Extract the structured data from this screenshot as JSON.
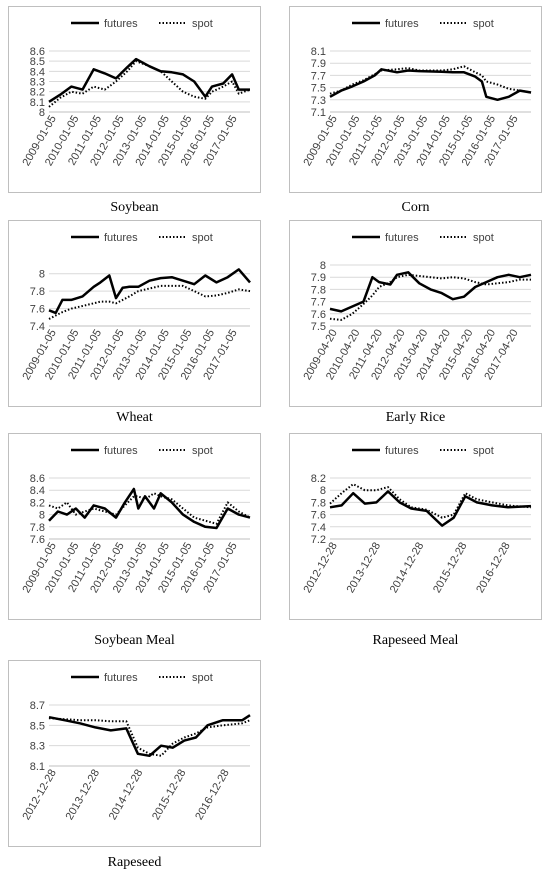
{
  "colors": {
    "futures": "#000000",
    "spot": "#000000",
    "grid": "#d9d9d9",
    "axis_text": "#404040"
  },
  "chart_data": [
    {
      "type": "line",
      "title": "Soybean",
      "legend": [
        "futures",
        "spot"
      ],
      "legend_position": "top",
      "x_tick_labels": [
        "2009-01-05",
        "2010-01-05",
        "2011-01-05",
        "2012-01-05",
        "2013-01-05",
        "2014-01-05",
        "2015-01-05",
        "2016-01-05",
        "2017-01-05"
      ],
      "y_tick_labels": [
        "8",
        "8.1",
        "8.2",
        "8.3",
        "8.4",
        "8.5",
        "8.6"
      ],
      "ylim": [
        8,
        8.6
      ],
      "xlim": [
        2009.0,
        2018.0
      ],
      "grid": "horizontal",
      "x": [
        2009.0,
        2009.5,
        2010.0,
        2010.5,
        2011.0,
        2011.5,
        2012.0,
        2012.5,
        2012.9,
        2013.5,
        2014.0,
        2014.5,
        2015.0,
        2015.5,
        2016.0,
        2016.3,
        2016.8,
        2017.2,
        2017.5,
        2018.0
      ],
      "series": [
        {
          "name": "futures",
          "style": "solid",
          "values": [
            8.1,
            8.17,
            8.25,
            8.22,
            8.42,
            8.38,
            8.33,
            8.44,
            8.52,
            8.45,
            8.4,
            8.39,
            8.37,
            8.3,
            8.15,
            8.25,
            8.28,
            8.37,
            8.22,
            8.22
          ]
        },
        {
          "name": "spot",
          "style": "dotted",
          "values": [
            8.05,
            8.14,
            8.2,
            8.18,
            8.25,
            8.22,
            8.3,
            8.4,
            8.5,
            8.45,
            8.4,
            8.3,
            8.2,
            8.15,
            8.13,
            8.2,
            8.25,
            8.3,
            8.18,
            8.22
          ]
        }
      ]
    },
    {
      "type": "line",
      "title": "Corn",
      "legend": [
        "futures",
        "spot"
      ],
      "legend_position": "top",
      "x_tick_labels": [
        "2009-01-05",
        "2010-01-05",
        "2011-01-05",
        "2012-01-05",
        "2013-01-05",
        "2014-01-05",
        "2015-01-05",
        "2016-01-05",
        "2017-01-05"
      ],
      "y_tick_labels": [
        "7.1",
        "7.3",
        "7.5",
        "7.7",
        "7.9",
        "8.1"
      ],
      "ylim": [
        7.1,
        8.1
      ],
      "xlim": [
        2009.0,
        2018.0
      ],
      "grid": "horizontal",
      "x": [
        2009.0,
        2009.5,
        2010.0,
        2010.5,
        2011.0,
        2011.3,
        2012.0,
        2012.5,
        2013.0,
        2014.0,
        2014.5,
        2015.0,
        2015.5,
        2015.8,
        2016.0,
        2016.5,
        2017.0,
        2017.5,
        2018.0
      ],
      "series": [
        {
          "name": "futures",
          "style": "solid",
          "values": [
            7.35,
            7.45,
            7.52,
            7.6,
            7.7,
            7.8,
            7.75,
            7.78,
            7.77,
            7.76,
            7.75,
            7.75,
            7.68,
            7.6,
            7.35,
            7.3,
            7.35,
            7.45,
            7.42
          ]
        },
        {
          "name": "spot",
          "style": "dotted",
          "values": [
            7.4,
            7.45,
            7.55,
            7.62,
            7.72,
            7.78,
            7.8,
            7.82,
            7.78,
            7.78,
            7.8,
            7.85,
            7.75,
            7.7,
            7.6,
            7.55,
            7.48,
            7.45,
            7.42
          ]
        }
      ]
    },
    {
      "type": "line",
      "title": "Wheat",
      "legend": [
        "futures",
        "spot"
      ],
      "legend_position": "top",
      "x_tick_labels": [
        "2009-01-05",
        "2010-01-05",
        "2011-01-05",
        "2012-01-05",
        "2013-01-05",
        "2014-01-05",
        "2015-01-05",
        "2016-01-05",
        "2017-01-05"
      ],
      "y_tick_labels": [
        "7.4",
        "7.6",
        "7.8",
        "8"
      ],
      "ylim": [
        7.4,
        8.1
      ],
      "xlim": [
        2009.0,
        2018.0
      ],
      "grid": "horizontal",
      "x": [
        2009.0,
        2009.3,
        2009.6,
        2010.0,
        2010.5,
        2011.0,
        2011.3,
        2011.7,
        2012.0,
        2012.3,
        2012.6,
        2013.0,
        2013.5,
        2014.0,
        2014.5,
        2015.0,
        2015.5,
        2016.0,
        2016.5,
        2017.0,
        2017.5,
        2018.0
      ],
      "series": [
        {
          "name": "futures",
          "style": "solid",
          "values": [
            7.58,
            7.55,
            7.7,
            7.7,
            7.74,
            7.85,
            7.9,
            7.98,
            7.72,
            7.84,
            7.85,
            7.85,
            7.92,
            7.95,
            7.96,
            7.92,
            7.88,
            7.98,
            7.9,
            7.96,
            8.05,
            7.9
          ]
        },
        {
          "name": "spot",
          "style": "dotted",
          "values": [
            7.48,
            7.52,
            7.56,
            7.6,
            7.63,
            7.66,
            7.68,
            7.68,
            7.66,
            7.7,
            7.74,
            7.8,
            7.83,
            7.86,
            7.86,
            7.86,
            7.8,
            7.74,
            7.75,
            7.78,
            7.82,
            7.8
          ]
        }
      ]
    },
    {
      "type": "line",
      "title": "Early Rice",
      "legend": [
        "futures",
        "spot"
      ],
      "legend_position": "top",
      "x_tick_labels": [
        "2009-04-20",
        "2010-04-20",
        "2011-04-20",
        "2012-04-20",
        "2013-04-20",
        "2014-04-20",
        "2015-04-20",
        "2016-04-20",
        "2017-04-20"
      ],
      "y_tick_labels": [
        "7.5",
        "7.6",
        "7.7",
        "7.8",
        "7.9",
        "8"
      ],
      "ylim": [
        7.5,
        8.0
      ],
      "xlim": [
        2009.3,
        2018.3
      ],
      "grid": "horizontal",
      "x": [
        2009.3,
        2009.8,
        2010.3,
        2010.8,
        2011.2,
        2011.5,
        2012.0,
        2012.3,
        2012.8,
        2013.3,
        2013.8,
        2014.3,
        2014.8,
        2015.3,
        2015.8,
        2016.3,
        2016.8,
        2017.3,
        2017.8,
        2018.3
      ],
      "series": [
        {
          "name": "futures",
          "style": "solid",
          "values": [
            7.64,
            7.62,
            7.66,
            7.7,
            7.9,
            7.86,
            7.84,
            7.92,
            7.94,
            7.85,
            7.8,
            7.77,
            7.72,
            7.74,
            7.82,
            7.86,
            7.9,
            7.92,
            7.9,
            7.92
          ]
        },
        {
          "name": "spot",
          "style": "dotted",
          "values": [
            7.56,
            7.55,
            7.6,
            7.68,
            7.75,
            7.82,
            7.86,
            7.9,
            7.92,
            7.91,
            7.9,
            7.89,
            7.9,
            7.89,
            7.86,
            7.84,
            7.85,
            7.86,
            7.88,
            7.88
          ]
        }
      ]
    },
    {
      "type": "line",
      "title": "Soybean Meal",
      "legend": [
        "futures",
        "spot"
      ],
      "legend_position": "top",
      "x_tick_labels": [
        "2009-01-05",
        "2010-01-05",
        "2011-01-05",
        "2012-01-05",
        "2013-01-05",
        "2014-01-05",
        "2015-01-05",
        "2016-01-05",
        "2017-01-05"
      ],
      "y_tick_labels": [
        "7.6",
        "7.8",
        "8",
        "8.2",
        "8.4",
        "8.6"
      ],
      "ylim": [
        7.6,
        8.6
      ],
      "xlim": [
        2009.0,
        2018.0
      ],
      "grid": "horizontal",
      "x": [
        2009.0,
        2009.4,
        2009.8,
        2010.2,
        2010.6,
        2011.0,
        2011.5,
        2012.0,
        2012.4,
        2012.8,
        2013.0,
        2013.3,
        2013.7,
        2014.0,
        2014.5,
        2015.0,
        2015.5,
        2016.0,
        2016.5,
        2017.0,
        2017.5,
        2018.0
      ],
      "series": [
        {
          "name": "futures",
          "style": "solid",
          "values": [
            7.9,
            8.05,
            8.0,
            8.1,
            7.95,
            8.15,
            8.1,
            7.95,
            8.2,
            8.42,
            8.1,
            8.3,
            8.1,
            8.35,
            8.2,
            8.0,
            7.88,
            7.8,
            7.78,
            8.1,
            8.0,
            7.95
          ]
        },
        {
          "name": "spot",
          "style": "dotted",
          "values": [
            8.15,
            8.1,
            8.2,
            8.0,
            8.05,
            8.1,
            8.05,
            8.0,
            8.15,
            8.3,
            8.3,
            8.25,
            8.35,
            8.3,
            8.25,
            8.1,
            7.95,
            7.9,
            7.85,
            8.2,
            8.05,
            7.95
          ]
        }
      ]
    },
    {
      "type": "line",
      "title": "Rapeseed Meal",
      "legend": [
        "futures",
        "spot"
      ],
      "legend_position": "top",
      "x_tick_labels": [
        "2012-12-28",
        "2013-12-28",
        "2014-12-28",
        "2015-12-28",
        "2016-12-28"
      ],
      "y_tick_labels": [
        "7.2",
        "7.4",
        "7.6",
        "7.8",
        "8",
        "8.2"
      ],
      "ylim": [
        7.2,
        8.2
      ],
      "xlim": [
        2013.0,
        2018.2
      ],
      "grid": "horizontal",
      "x": [
        2013.0,
        2013.3,
        2013.6,
        2013.9,
        2014.2,
        2014.5,
        2014.8,
        2015.1,
        2015.5,
        2015.9,
        2016.2,
        2016.5,
        2016.8,
        2017.2,
        2017.6,
        2018.2
      ],
      "series": [
        {
          "name": "futures",
          "style": "solid",
          "values": [
            7.72,
            7.75,
            7.95,
            7.78,
            7.8,
            7.98,
            7.8,
            7.7,
            7.66,
            7.42,
            7.55,
            7.9,
            7.8,
            7.75,
            7.72,
            7.74
          ]
        },
        {
          "name": "spot",
          "style": "dotted",
          "values": [
            7.78,
            7.95,
            8.1,
            8.0,
            8.0,
            8.05,
            7.85,
            7.72,
            7.68,
            7.55,
            7.6,
            7.95,
            7.85,
            7.8,
            7.75,
            7.72
          ]
        }
      ]
    },
    {
      "type": "line",
      "title": "Rapeseed",
      "legend": [
        "futures",
        "spot"
      ],
      "legend_position": "top",
      "x_tick_labels": [
        "2012-12-28",
        "2013-12-28",
        "2014-12-28",
        "2015-12-28",
        "2016-12-28"
      ],
      "y_tick_labels": [
        "8.1",
        "8.3",
        "8.5",
        "8.7"
      ],
      "ylim": [
        8.1,
        8.7
      ],
      "xlim": [
        2013.0,
        2018.2
      ],
      "grid": "horizontal",
      "x": [
        2013.0,
        2013.4,
        2013.8,
        2014.2,
        2014.6,
        2015.0,
        2015.3,
        2015.6,
        2015.9,
        2016.2,
        2016.5,
        2016.8,
        2017.1,
        2017.5,
        2018.0,
        2018.2
      ],
      "series": [
        {
          "name": "futures",
          "style": "solid",
          "values": [
            8.58,
            8.55,
            8.52,
            8.48,
            8.45,
            8.47,
            8.22,
            8.2,
            8.3,
            8.28,
            8.35,
            8.38,
            8.5,
            8.55,
            8.55,
            8.6
          ]
        },
        {
          "name": "spot",
          "style": "dotted",
          "values": [
            8.57,
            8.56,
            8.55,
            8.55,
            8.54,
            8.54,
            8.28,
            8.22,
            8.2,
            8.32,
            8.38,
            8.42,
            8.48,
            8.5,
            8.52,
            8.55
          ]
        }
      ]
    }
  ]
}
